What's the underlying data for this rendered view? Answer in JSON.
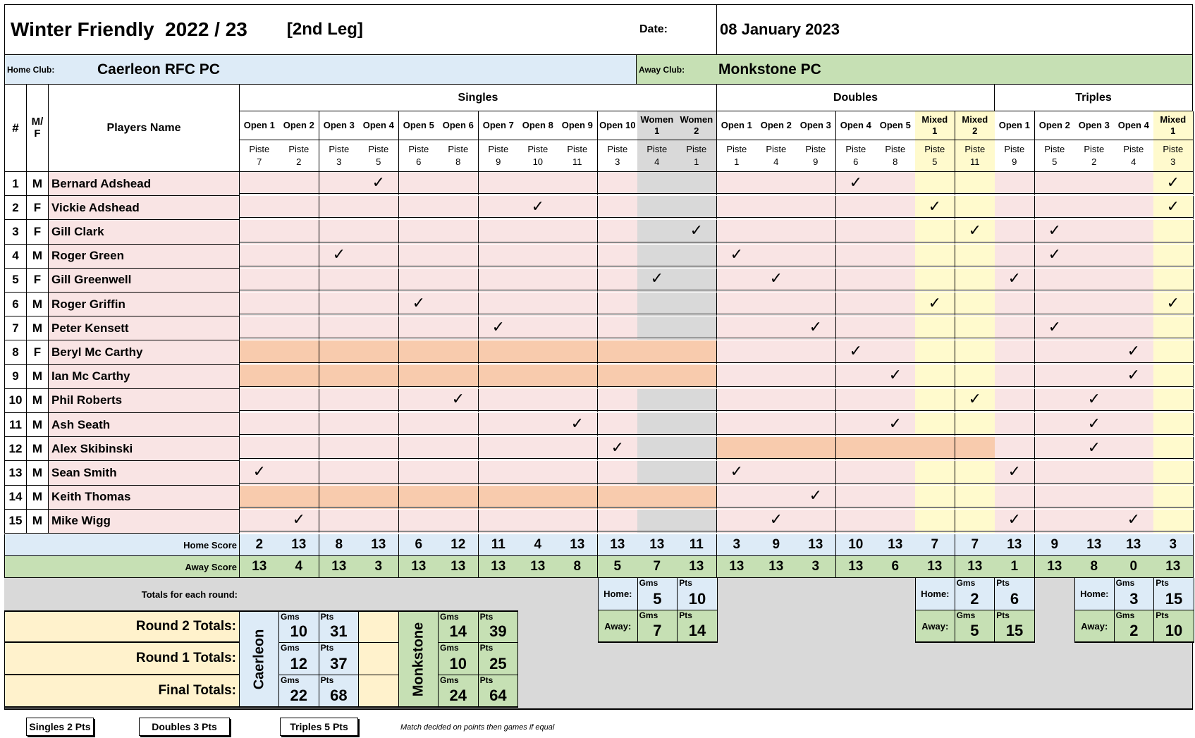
{
  "header": {
    "title": "Winter Friendly  2022 / 23",
    "leg": "[2nd Leg]",
    "date_label": "Date:",
    "date_value": "08 January 2023",
    "home_label": "Home Club:",
    "home_name": "Caerleon RFC PC",
    "away_label": "Away Club:",
    "away_name": "Monkstone PC"
  },
  "columns": {
    "num_label": "#",
    "sex_label": "M/\nF",
    "name_label": "Players Name",
    "sections": [
      {
        "label": "Singles"
      },
      {
        "label": "Doubles"
      },
      {
        "label": "Triples"
      }
    ],
    "games": [
      {
        "label": "Open 1",
        "piste": "Piste\n7",
        "type": "s"
      },
      {
        "label": "Open 2",
        "piste": "Piste\n2",
        "type": "s"
      },
      {
        "label": "Open 3",
        "piste": "Piste\n3",
        "type": "s"
      },
      {
        "label": "Open 4",
        "piste": "Piste\n5",
        "type": "s"
      },
      {
        "label": "Open 5",
        "piste": "Piste\n6",
        "type": "s"
      },
      {
        "label": "Open 6",
        "piste": "Piste\n8",
        "type": "s"
      },
      {
        "label": "Open 7",
        "piste": "Piste\n9",
        "type": "s"
      },
      {
        "label": "Open 8",
        "piste": "Piste\n10",
        "type": "s"
      },
      {
        "label": "Open 9",
        "piste": "Piste\n11",
        "type": "s"
      },
      {
        "label": "Open 10",
        "piste": "Piste\n3",
        "type": "s"
      },
      {
        "label": "Women\n1",
        "piste": "Piste\n4",
        "type": "w"
      },
      {
        "label": "Women\n2",
        "piste": "Piste\n1",
        "type": "w"
      },
      {
        "label": "Open 1",
        "piste": "Piste\n1",
        "type": "s"
      },
      {
        "label": "Open 2",
        "piste": "Piste\n4",
        "type": "s"
      },
      {
        "label": "Open 3",
        "piste": "Piste\n9",
        "type": "s"
      },
      {
        "label": "Open 4",
        "piste": "Piste\n6",
        "type": "s"
      },
      {
        "label": "Open 5",
        "piste": "Piste\n8",
        "type": "s"
      },
      {
        "label": "Mixed\n1",
        "piste": "Piste\n5",
        "type": "m"
      },
      {
        "label": "Mixed\n2",
        "piste": "Piste\n11",
        "type": "m"
      },
      {
        "label": "Open 1",
        "piste": "Piste\n9",
        "type": "s"
      },
      {
        "label": "Open 2",
        "piste": "Piste\n5",
        "type": "s"
      },
      {
        "label": "Open 3",
        "piste": "Piste\n2",
        "type": "s"
      },
      {
        "label": "Open 4",
        "piste": "Piste\n4",
        "type": "s"
      },
      {
        "label": "Mixed\n1",
        "piste": "Piste\n3",
        "type": "m"
      }
    ]
  },
  "players": [
    {
      "num": "1",
      "sex": "M",
      "name": "Bernard Adshead",
      "picks": [
        3,
        15,
        23
      ],
      "blocked": []
    },
    {
      "num": "2",
      "sex": "F",
      "name": "Vickie Adshead",
      "picks": [
        7,
        17,
        23
      ],
      "blocked": []
    },
    {
      "num": "3",
      "sex": "F",
      "name": "Gill Clark",
      "picks": [
        11,
        18,
        20
      ],
      "blocked": []
    },
    {
      "num": "4",
      "sex": "M",
      "name": "Roger Green",
      "picks": [
        2,
        12,
        20
      ],
      "blocked": []
    },
    {
      "num": "5",
      "sex": "F",
      "name": "Gill Greenwell",
      "picks": [
        10,
        13,
        19
      ],
      "blocked": []
    },
    {
      "num": "6",
      "sex": "M",
      "name": "Roger Griffin",
      "picks": [
        4,
        17,
        23
      ],
      "blocked": []
    },
    {
      "num": "7",
      "sex": "M",
      "name": "Peter Kensett",
      "picks": [
        6,
        14,
        20
      ],
      "blocked": []
    },
    {
      "num": "8",
      "sex": "F",
      "name": "Beryl Mc Carthy",
      "picks": [
        15,
        22
      ],
      "blocked": [
        0,
        1,
        2,
        3,
        4,
        5,
        6,
        7,
        8,
        9,
        10,
        11
      ]
    },
    {
      "num": "9",
      "sex": "M",
      "name": "Ian Mc Carthy",
      "picks": [
        16,
        22
      ],
      "blocked": [
        0,
        1,
        2,
        3,
        4,
        5,
        6,
        7,
        8,
        9,
        10,
        11
      ]
    },
    {
      "num": "10",
      "sex": "M",
      "name": "Phil Roberts",
      "picks": [
        5,
        18,
        21
      ],
      "blocked": []
    },
    {
      "num": "11",
      "sex": "M",
      "name": "Ash Seath",
      "picks": [
        8,
        16,
        21
      ],
      "blocked": []
    },
    {
      "num": "12",
      "sex": "M",
      "name": "Alex Skibinski",
      "picks": [
        9,
        21
      ],
      "blocked": [
        12,
        13,
        14,
        15,
        16,
        17,
        18
      ]
    },
    {
      "num": "13",
      "sex": "M",
      "name": "Sean Smith",
      "picks": [
        0,
        12,
        19
      ],
      "blocked": []
    },
    {
      "num": "14",
      "sex": "M",
      "name": "Keith Thomas",
      "picks": [
        14
      ],
      "blocked": [
        0,
        1,
        2,
        3,
        4,
        5,
        6,
        7,
        8,
        9,
        10,
        11
      ]
    },
    {
      "num": "15",
      "sex": "M",
      "name": "Mike Wigg",
      "picks": [
        1,
        13,
        19,
        22
      ],
      "blocked": []
    }
  ],
  "tick_symbol": "✓",
  "scores": {
    "home_label": "Home Score",
    "away_label": "Away Score",
    "home": [
      "2",
      "13",
      "8",
      "13",
      "6",
      "12",
      "11",
      "4",
      "13",
      "13",
      "13",
      "11",
      "3",
      "9",
      "13",
      "10",
      "13",
      "7",
      "7",
      "13",
      "9",
      "13",
      "13",
      "3"
    ],
    "away": [
      "13",
      "4",
      "13",
      "3",
      "13",
      "13",
      "13",
      "13",
      "8",
      "5",
      "7",
      "13",
      "13",
      "13",
      "3",
      "13",
      "6",
      "13",
      "13",
      "1",
      "13",
      "8",
      "0",
      "13"
    ]
  },
  "totals_label": "Totals for each round:",
  "round_totals": {
    "home_word": "Home:",
    "away_word": "Away:",
    "gms_label": "Gms",
    "pts_label": "Pts",
    "singles": {
      "home_gms": "5",
      "home_pts": "10",
      "away_gms": "7",
      "away_pts": "14"
    },
    "doubles": {
      "home_gms": "2",
      "home_pts": "6",
      "away_gms": "5",
      "away_pts": "15"
    },
    "triples": {
      "home_gms": "3",
      "home_pts": "15",
      "away_gms": "2",
      "away_pts": "10"
    }
  },
  "summary": {
    "rows": [
      "Round 2 Totals:",
      "Round 1 Totals:",
      "Final Totals:"
    ],
    "home_team": "Caerleon",
    "away_team": "Monkstone",
    "home": [
      {
        "gms": "10",
        "pts": "31"
      },
      {
        "gms": "12",
        "pts": "37"
      },
      {
        "gms": "22",
        "pts": "68"
      }
    ],
    "away": [
      {
        "gms": "14",
        "pts": "39"
      },
      {
        "gms": "10",
        "pts": "25"
      },
      {
        "gms": "24",
        "pts": "64"
      }
    ]
  },
  "legend": {
    "singles": "Singles 2 Pts",
    "doubles": "Doubles 3 Pts",
    "triples": "Triples 5 Pts",
    "note": "Match decided on points then games if equal"
  },
  "colors": {
    "row_pink": "#f9e4e4",
    "grey": "#d9d9d9",
    "yellow": "#fffacd",
    "orange": "#f8cbad",
    "home_blue": "#ddebf7",
    "away_green": "#c6e0b4",
    "cream": "#fff2cc"
  }
}
